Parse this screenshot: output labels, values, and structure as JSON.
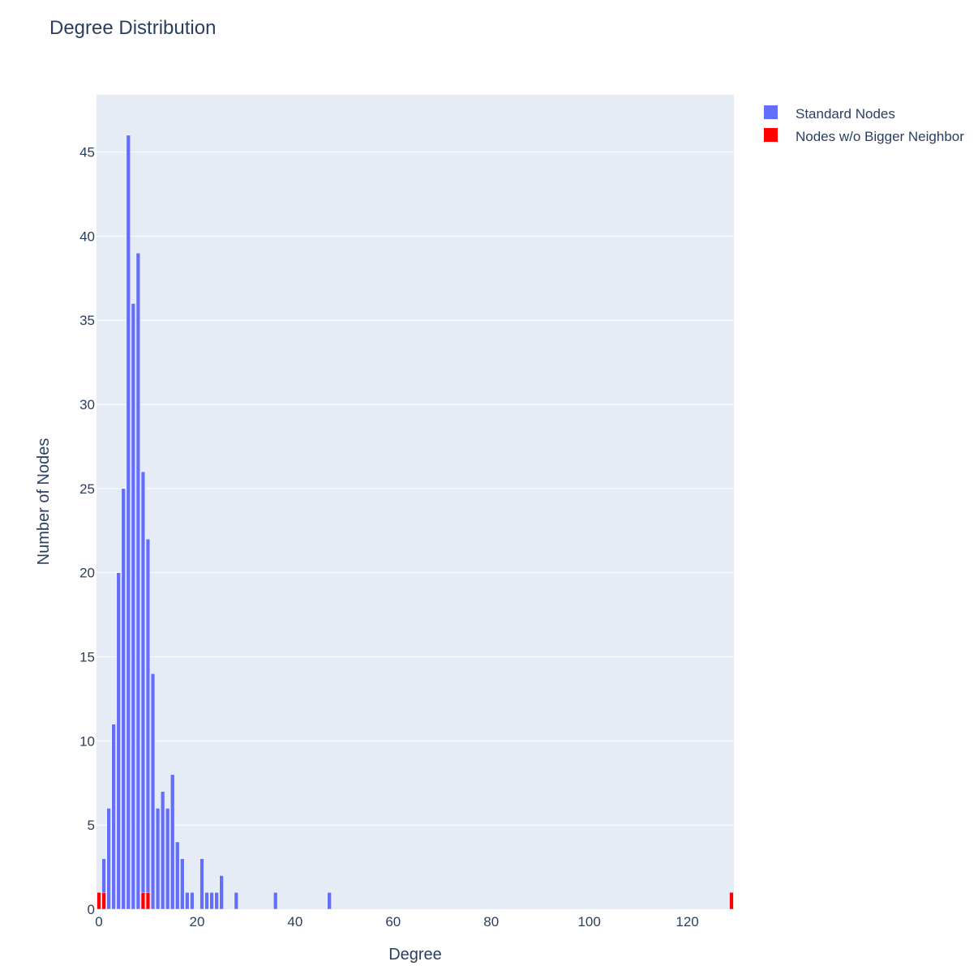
{
  "chart_data": {
    "type": "bar",
    "title": "Degree Distribution",
    "xlabel": "Degree",
    "ylabel": "Number of Nodes",
    "xlim": [
      -0.5,
      129.5
    ],
    "ylim": [
      0,
      48.4
    ],
    "xticks": [
      0,
      20,
      40,
      60,
      80,
      100,
      120
    ],
    "yticks": [
      0,
      5,
      10,
      15,
      20,
      25,
      30,
      35,
      40,
      45
    ],
    "grid": true,
    "legend_position": "top-right",
    "barmode": "overlay",
    "series": [
      {
        "name": "Standard Nodes",
        "color": "#636efa",
        "x": [
          1,
          2,
          3,
          4,
          5,
          6,
          7,
          8,
          9,
          10,
          11,
          12,
          13,
          14,
          15,
          16,
          17,
          18,
          19,
          21,
          22,
          23,
          24,
          25,
          28,
          36,
          47
        ],
        "values": [
          3,
          6,
          11,
          20,
          25,
          46,
          36,
          39,
          26,
          22,
          14,
          6,
          7,
          6,
          8,
          4,
          3,
          1,
          1,
          3,
          1,
          1,
          1,
          2,
          1,
          1,
          1
        ]
      },
      {
        "name": "Nodes w/o Bigger Neighbor",
        "color": "#ff0000",
        "x": [
          0,
          1,
          9,
          10,
          129
        ],
        "values": [
          1,
          1,
          1,
          1,
          1
        ]
      }
    ]
  }
}
